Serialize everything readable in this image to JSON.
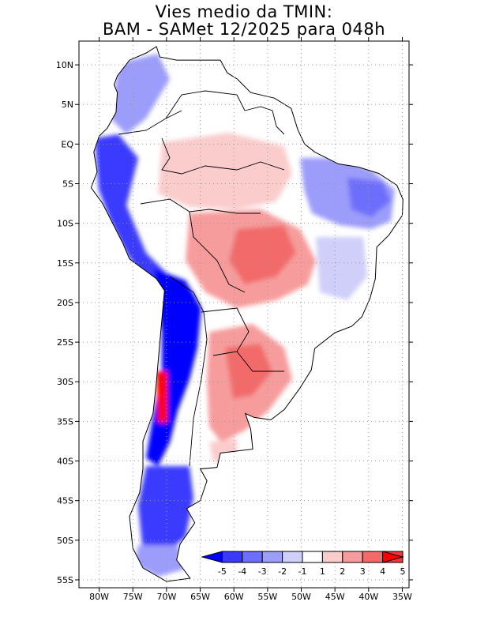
{
  "title": {
    "line1": "Vies medio da TMIN:",
    "line2": "BAM - SAMet 12/2025  para 048h"
  },
  "axes": {
    "lat_labels": [
      "10N",
      "5N",
      "EQ",
      "5S",
      "10S",
      "15S",
      "20S",
      "25S",
      "30S",
      "35S",
      "40S",
      "45S",
      "50S",
      "55S"
    ],
    "lat_values": [
      10,
      5,
      0,
      -5,
      -10,
      -15,
      -20,
      -25,
      -30,
      -35,
      -40,
      -45,
      -50,
      -55
    ],
    "lon_labels": [
      "80W",
      "75W",
      "70W",
      "65W",
      "60W",
      "55W",
      "50W",
      "45W",
      "40W",
      "35W"
    ],
    "lon_values": [
      -80,
      -75,
      -70,
      -65,
      -60,
      -55,
      -50,
      -45,
      -40,
      -35
    ],
    "lon_range": [
      -83,
      -34
    ],
    "lat_range": [
      -56,
      13
    ],
    "grid": "dotted"
  },
  "colorbar": {
    "labels": [
      "-5",
      "-4",
      "-3",
      "-2",
      "-1",
      "1",
      "2",
      "3",
      "4",
      "5"
    ],
    "colors": [
      "#0000ff",
      "#3a3aff",
      "#6e6efc",
      "#9c9cfa",
      "#cfcffa",
      "#ffffff",
      "#fbcccc",
      "#f79c9c",
      "#f26a6a",
      "#ee3838",
      "#ff0000"
    ]
  },
  "colors": {
    "land_outline": "#000000",
    "background": "#ffffff"
  }
}
